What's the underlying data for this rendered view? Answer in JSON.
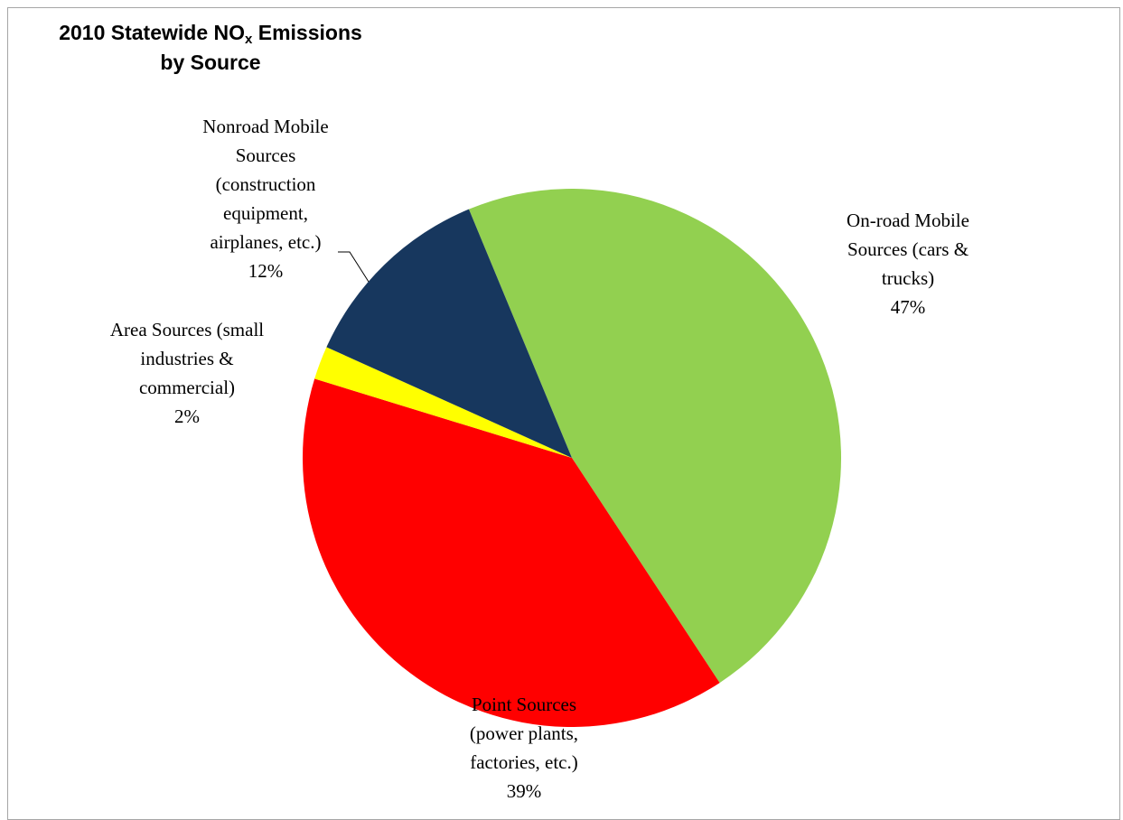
{
  "chart_data": {
    "type": "pie",
    "title": {
      "prefix": "2010 Statewide NO",
      "subscript": "x",
      "suffix": " Emissions",
      "line2": "by Source"
    },
    "categories": [
      "On-road Mobile Sources (cars & trucks)",
      "Point Sources (power plants, factories, etc.)",
      "Area Sources (small industries & commercial)",
      "Nonroad Mobile Sources (construction equipment, airplanes, etc.)"
    ],
    "values": [
      47,
      39,
      2,
      12
    ],
    "value_labels": [
      "47%",
      "39%",
      "2%",
      "12%"
    ],
    "colors": [
      "#92d050",
      "#ff0000",
      "#ffff00",
      "#17375e"
    ],
    "label_lines": [
      [
        "On-road Mobile",
        "Sources (cars &",
        "trucks)"
      ],
      [
        "Point Sources",
        "(power plants,",
        "factories, etc.)"
      ],
      [
        "Area Sources (small",
        "industries &",
        "commercial)"
      ],
      [
        "Nonroad Mobile",
        "Sources",
        "(construction",
        "equipment,",
        "airplanes, etc.)"
      ]
    ],
    "legend": "none"
  }
}
